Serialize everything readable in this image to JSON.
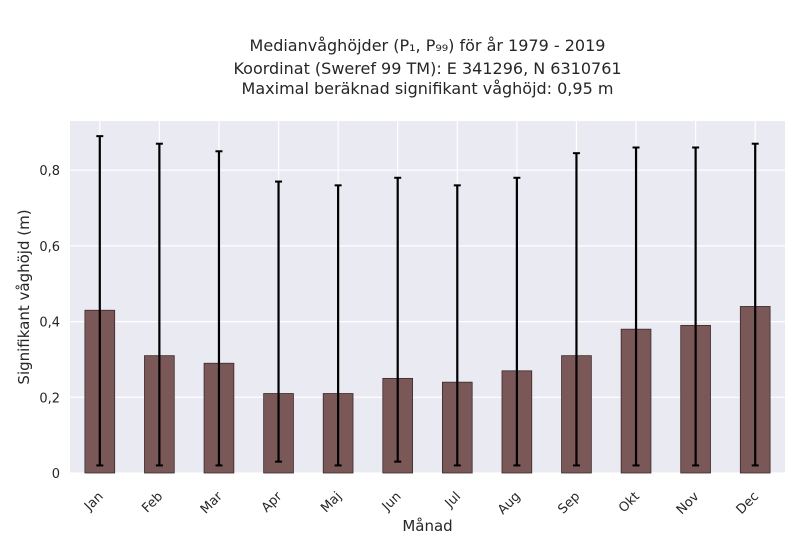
{
  "chart_data": {
    "type": "bar",
    "title_lines": [
      "Medianvåghöjder (P₁, P₉₉) för år 1979 - 2019",
      "Koordinat (Sweref 99 TM): E 341296, N 6310761",
      "Maximal beräknad signifikant våghöjd: 0,95 m"
    ],
    "xlabel": "Månad",
    "ylabel": "Signifikant våghöjd (m)",
    "categories": [
      "Jan",
      "Feb",
      "Mar",
      "Apr",
      "Maj",
      "Jun",
      "Jul",
      "Aug",
      "Sep",
      "Okt",
      "Nov",
      "Dec"
    ],
    "values": [
      0.43,
      0.31,
      0.29,
      0.21,
      0.21,
      0.25,
      0.24,
      0.27,
      0.31,
      0.38,
      0.39,
      0.44
    ],
    "p1": [
      0.02,
      0.02,
      0.02,
      0.03,
      0.02,
      0.03,
      0.02,
      0.02,
      0.02,
      0.02,
      0.02,
      0.02
    ],
    "p99": [
      0.89,
      0.87,
      0.85,
      0.77,
      0.76,
      0.78,
      0.76,
      0.78,
      0.845,
      0.86,
      0.86,
      0.87
    ],
    "ylim": [
      0,
      0.93
    ],
    "yticks": [
      0,
      0.2,
      0.4,
      0.6,
      0.8
    ],
    "ytick_labels": [
      "0",
      "0,2",
      "0,4",
      "0,6",
      "0,8"
    ],
    "grid": true,
    "colors": {
      "bar": "#7a5858",
      "bar_edge": "#3a2a2a",
      "errorbar": "#000000",
      "plot_bg": "#eaeaf2",
      "grid": "#ffffff"
    }
  }
}
